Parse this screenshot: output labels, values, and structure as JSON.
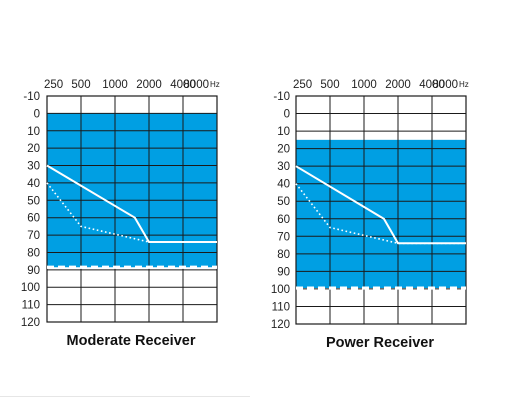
{
  "colors": {
    "band": "#009fe3",
    "grid": "#1a1a1a",
    "threshold_line": "#ffffff",
    "background": "#ffffff"
  },
  "chart_data": [
    {
      "type": "line",
      "title": "Moderate Receiver",
      "x_unit": "Hz",
      "x_ticks": [
        "250",
        "500",
        "1000",
        "2000",
        "4000",
        "8000"
      ],
      "y_ticks": [
        "-10",
        "0",
        "10",
        "20",
        "30",
        "40",
        "50",
        "60",
        "70",
        "80",
        "90",
        "100",
        "110",
        "120"
      ],
      "ylim": [
        -10,
        120
      ],
      "y_inverted": true,
      "grid": true,
      "fitting_range": {
        "from": 0,
        "to": 88.5
      },
      "range_limit_dashed": 88.5,
      "series": [
        {
          "style": "solid",
          "x": [
            250,
            1500,
            2000,
            8000
          ],
          "y": [
            30,
            60,
            74,
            74
          ]
        },
        {
          "style": "dotted",
          "x": [
            250,
            500,
            2000,
            8000
          ],
          "y": [
            40,
            65,
            74,
            74
          ]
        }
      ]
    },
    {
      "type": "line",
      "title": "Power Receiver",
      "x_unit": "Hz",
      "x_ticks": [
        "250",
        "500",
        "1000",
        "2000",
        "4000",
        "8000"
      ],
      "y_ticks": [
        "-10",
        "0",
        "10",
        "20",
        "30",
        "40",
        "50",
        "60",
        "70",
        "80",
        "90",
        "100",
        "110",
        "120"
      ],
      "ylim": [
        -10,
        120
      ],
      "y_inverted": true,
      "grid": true,
      "fitting_range": {
        "from": 15,
        "to": 99.5
      },
      "range_limit_dashed": 99.5,
      "series": [
        {
          "style": "solid",
          "x": [
            250,
            1500,
            2000,
            8000
          ],
          "y": [
            30,
            60,
            74,
            74
          ]
        },
        {
          "style": "dotted",
          "x": [
            250,
            500,
            2000,
            8000
          ],
          "y": [
            40,
            65,
            74,
            74
          ]
        }
      ]
    }
  ]
}
